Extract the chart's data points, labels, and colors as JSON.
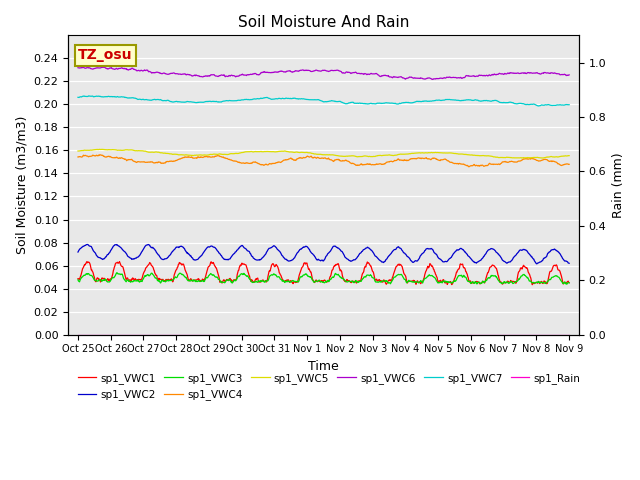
{
  "title": "Soil Moisture And Rain",
  "xlabel": "Time",
  "ylabel_left": "Soil Moisture (m3/m3)",
  "ylabel_right": "Rain (mm)",
  "ylim_left": [
    0.0,
    0.26
  ],
  "ylim_right": [
    0.0,
    1.1
  ],
  "yticks_left": [
    0.0,
    0.02,
    0.04,
    0.06,
    0.08,
    0.1,
    0.12,
    0.14,
    0.16,
    0.18,
    0.2,
    0.22,
    0.24
  ],
  "yticks_right": [
    0.0,
    0.2,
    0.4,
    0.6,
    0.8,
    1.0
  ],
  "xtick_labels": [
    "Oct 25",
    "Oct 26",
    "Oct 27",
    "Oct 28",
    "Oct 29",
    "Oct 30",
    "Oct 31",
    "Nov 1",
    "Nov 2",
    "Nov 3",
    "Nov 4",
    "Nov 5",
    "Nov 6",
    "Nov 7",
    "Nov 8",
    "Nov 9"
  ],
  "background_color": "#e8e8e8",
  "series": {
    "sp1_VWC1": {
      "color": "#ff0000"
    },
    "sp1_VWC2": {
      "color": "#0000cc"
    },
    "sp1_VWC3": {
      "color": "#00dd00"
    },
    "sp1_VWC4": {
      "color": "#ff8800"
    },
    "sp1_VWC5": {
      "color": "#dddd00"
    },
    "sp1_VWC6": {
      "color": "#aa00cc"
    },
    "sp1_VWC7": {
      "color": "#00cccc"
    },
    "sp1_Rain": {
      "color": "#ff00cc"
    }
  },
  "annotation_text": "TZ_osu",
  "annotation_boxcolor": "#ffffcc",
  "annotation_textcolor": "#cc0000",
  "annotation_edgecolor": "#999900"
}
